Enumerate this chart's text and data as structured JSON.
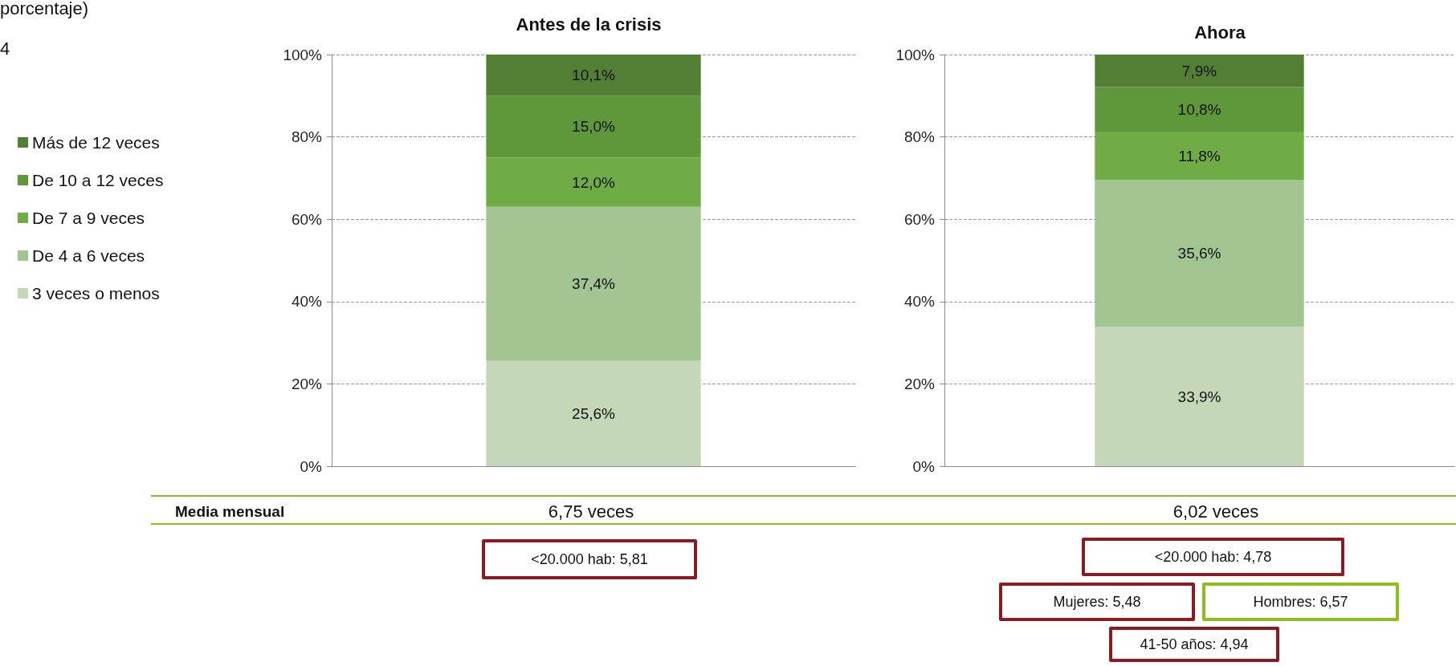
{
  "chart_data": [
    {
      "type": "bar",
      "title": "Antes de la crisis",
      "categories": [
        null
      ],
      "stacked": true,
      "ylim": [
        0,
        100
      ],
      "yticks": [
        {
          "value": 0,
          "label": "0%"
        },
        {
          "value": 20,
          "label": "20%"
        },
        {
          "value": 40,
          "label": "40%"
        },
        {
          "value": 60,
          "label": "60%"
        },
        {
          "value": 80,
          "label": "80%"
        },
        {
          "value": 100,
          "label": "100%"
        }
      ],
      "grid": "y",
      "legend": "left",
      "series": [
        {
          "name": "3 veces o menos",
          "color": "#c4d8b8",
          "values": [
            25.6
          ],
          "value_labels": [
            "25,6%"
          ]
        },
        {
          "name": "De 4 a 6 veces",
          "color": "#a2c491",
          "values": [
            37.4
          ],
          "value_labels": [
            "37,4%"
          ]
        },
        {
          "name": "De 7 a 9 veces",
          "color": "#70ac46",
          "values": [
            12.0
          ],
          "value_labels": [
            "12,0%"
          ]
        },
        {
          "name": "De 10 a 12 veces",
          "color": "#5e983a",
          "values": [
            15.0
          ],
          "value_labels": [
            "15,0%"
          ]
        },
        {
          "name": "Más de 12 veces",
          "color": "#527f33",
          "values": [
            10.1
          ],
          "value_labels": [
            "10,1%"
          ]
        }
      ],
      "annotations": [
        "porcentaje)",
        "4",
        "Media mensual",
        "6,75 veces",
        "<20.000 hab: 5,81"
      ]
    },
    {
      "type": "bar",
      "title": "Ahora",
      "categories": [
        null
      ],
      "stacked": true,
      "ylim": [
        0,
        100
      ],
      "yticks": [
        {
          "value": 0,
          "label": "0%"
        },
        {
          "value": 20,
          "label": "20%"
        },
        {
          "value": 40,
          "label": "40%"
        },
        {
          "value": 60,
          "label": "60%"
        },
        {
          "value": 80,
          "label": "80%"
        },
        {
          "value": 100,
          "label": "100%"
        }
      ],
      "grid": "y",
      "legend": false,
      "series": [
        {
          "color": "#c4d8b8",
          "values": [
            33.9
          ],
          "value_labels": [
            "33,9%"
          ]
        },
        {
          "color": "#a2c491",
          "values": [
            35.6
          ],
          "value_labels": [
            "35,6%"
          ]
        },
        {
          "color": "#70ac46",
          "values": [
            11.8
          ],
          "value_labels": [
            "11,8%"
          ]
        },
        {
          "color": "#5e983a",
          "values": [
            10.8
          ],
          "value_labels": [
            "10,8%"
          ]
        },
        {
          "color": "#527f33",
          "values": [
            7.9
          ],
          "value_labels": [
            "7,9%"
          ]
        }
      ],
      "annotations": [
        "6,02 veces",
        "<20.000 hab: 4,78",
        "Mujeres: 5,48",
        "Hombres: 6,57",
        "41-50 años: 4,94"
      ]
    }
  ]
}
